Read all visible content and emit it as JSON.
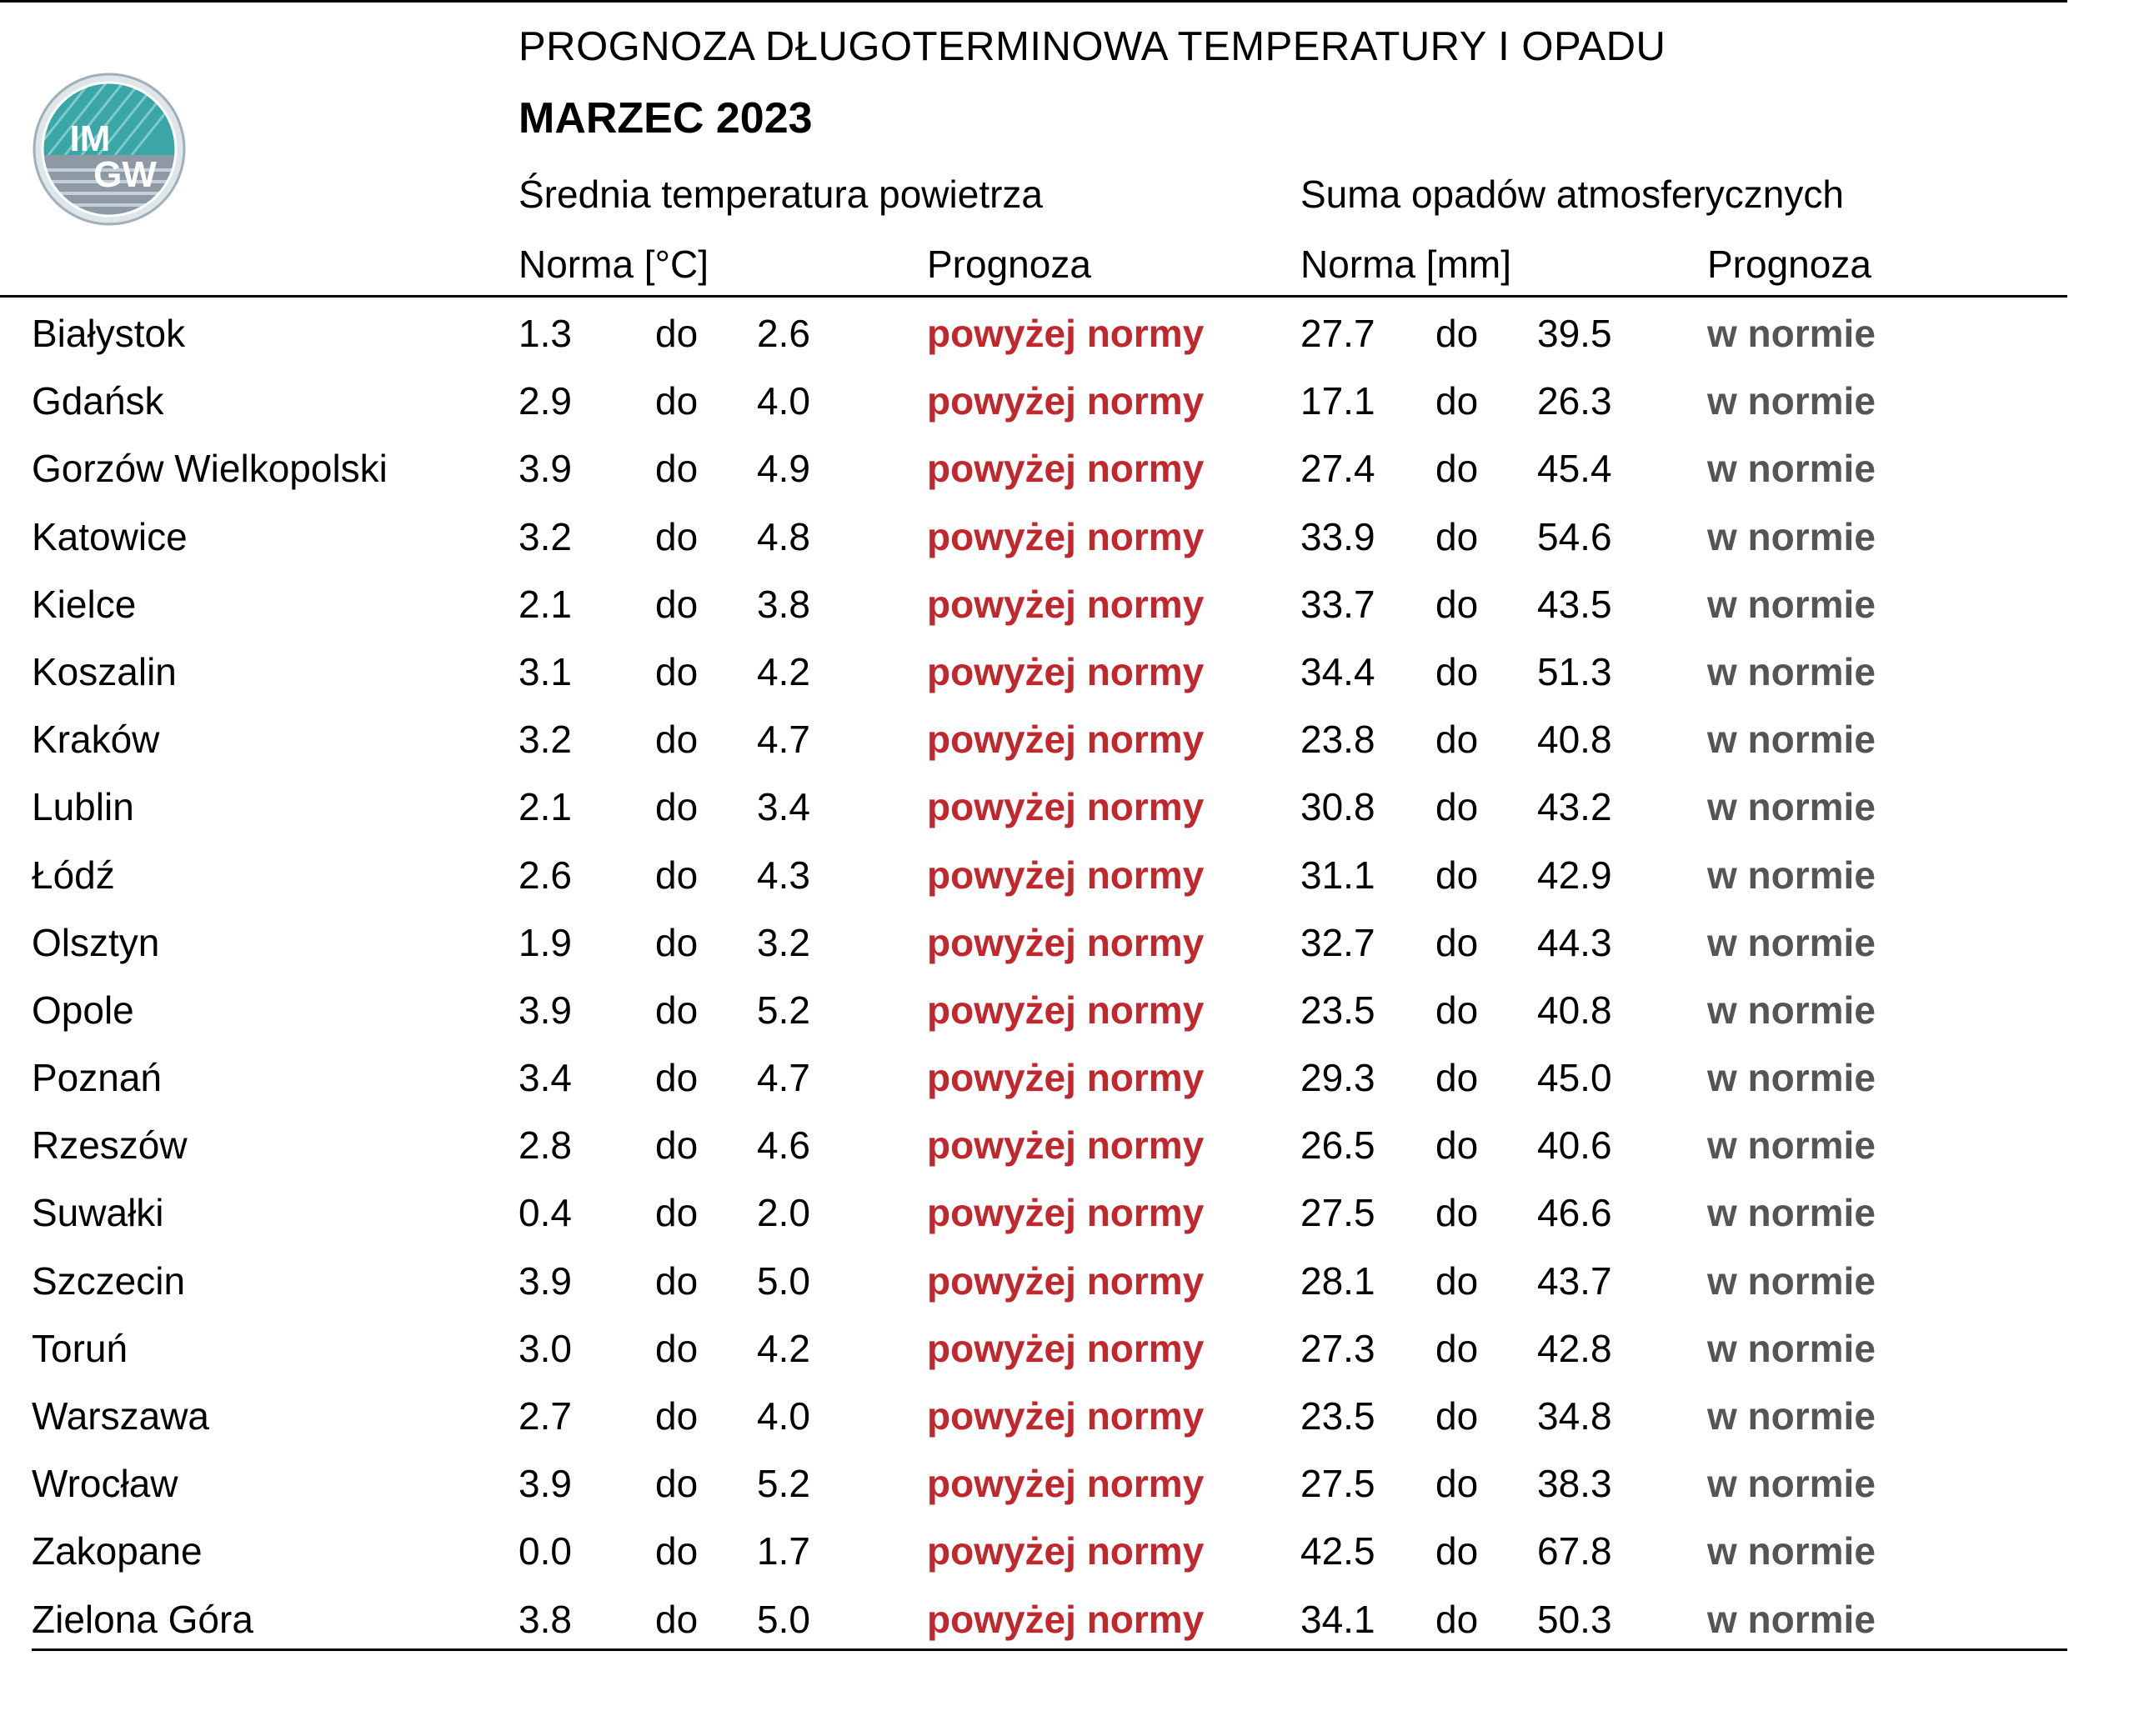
{
  "header": {
    "title": "PROGNOZA DŁUGOTERMINOWA TEMPERATURY I OPADU",
    "subtitle": "MARZEC 2023",
    "temp_group": "Średnia temperatura powietrza",
    "precip_group": "Suma opadów atmosferycznych",
    "temp_norm": "Norma [°C]",
    "temp_forecast": "Prognoza",
    "precip_norm": "Norma [mm]",
    "precip_forecast": "Prognoza"
  },
  "logo": {
    "text_line1": "IM",
    "text_line2": "GW",
    "colors": {
      "teal": "#3aa6a6",
      "gray": "#8d9aa6",
      "ring": "#c8d2d6"
    }
  },
  "colors": {
    "forecast_temp": "#c0282d",
    "forecast_precip": "#555555"
  },
  "rows": [
    {
      "city": "Białystok",
      "tmin": "1.3",
      "tdo": "do",
      "tmax": "2.6",
      "tfc": "powyżej normy",
      "pmin": "27.7",
      "pdo": "do",
      "pmax": "39.5",
      "pfc": "w normie"
    },
    {
      "city": "Gdańsk",
      "tmin": "2.9",
      "tdo": "do",
      "tmax": "4.0",
      "tfc": "powyżej normy",
      "pmin": "17.1",
      "pdo": "do",
      "pmax": "26.3",
      "pfc": "w normie"
    },
    {
      "city": "Gorzów Wielkopolski",
      "tmin": "3.9",
      "tdo": "do",
      "tmax": "4.9",
      "tfc": "powyżej normy",
      "pmin": "27.4",
      "pdo": "do",
      "pmax": "45.4",
      "pfc": "w normie"
    },
    {
      "city": "Katowice",
      "tmin": "3.2",
      "tdo": "do",
      "tmax": "4.8",
      "tfc": "powyżej normy",
      "pmin": "33.9",
      "pdo": "do",
      "pmax": "54.6",
      "pfc": "w normie"
    },
    {
      "city": "Kielce",
      "tmin": "2.1",
      "tdo": "do",
      "tmax": "3.8",
      "tfc": "powyżej normy",
      "pmin": "33.7",
      "pdo": "do",
      "pmax": "43.5",
      "pfc": "w normie"
    },
    {
      "city": "Koszalin",
      "tmin": "3.1",
      "tdo": "do",
      "tmax": "4.2",
      "tfc": "powyżej normy",
      "pmin": "34.4",
      "pdo": "do",
      "pmax": "51.3",
      "pfc": "w normie"
    },
    {
      "city": "Kraków",
      "tmin": "3.2",
      "tdo": "do",
      "tmax": "4.7",
      "tfc": "powyżej normy",
      "pmin": "23.8",
      "pdo": "do",
      "pmax": "40.8",
      "pfc": "w normie"
    },
    {
      "city": "Lublin",
      "tmin": "2.1",
      "tdo": "do",
      "tmax": "3.4",
      "tfc": "powyżej normy",
      "pmin": "30.8",
      "pdo": "do",
      "pmax": "43.2",
      "pfc": "w normie"
    },
    {
      "city": "Łódź",
      "tmin": "2.6",
      "tdo": "do",
      "tmax": "4.3",
      "tfc": "powyżej normy",
      "pmin": "31.1",
      "pdo": "do",
      "pmax": "42.9",
      "pfc": "w normie"
    },
    {
      "city": "Olsztyn",
      "tmin": "1.9",
      "tdo": "do",
      "tmax": "3.2",
      "tfc": "powyżej normy",
      "pmin": "32.7",
      "pdo": "do",
      "pmax": "44.3",
      "pfc": "w normie"
    },
    {
      "city": "Opole",
      "tmin": "3.9",
      "tdo": "do",
      "tmax": "5.2",
      "tfc": "powyżej normy",
      "pmin": "23.5",
      "pdo": "do",
      "pmax": "40.8",
      "pfc": "w normie"
    },
    {
      "city": "Poznań",
      "tmin": "3.4",
      "tdo": "do",
      "tmax": "4.7",
      "tfc": "powyżej normy",
      "pmin": "29.3",
      "pdo": "do",
      "pmax": "45.0",
      "pfc": "w normie"
    },
    {
      "city": "Rzeszów",
      "tmin": "2.8",
      "tdo": "do",
      "tmax": "4.6",
      "tfc": "powyżej normy",
      "pmin": "26.5",
      "pdo": "do",
      "pmax": "40.6",
      "pfc": "w normie"
    },
    {
      "city": "Suwałki",
      "tmin": "0.4",
      "tdo": "do",
      "tmax": "2.0",
      "tfc": "powyżej normy",
      "pmin": "27.5",
      "pdo": "do",
      "pmax": "46.6",
      "pfc": "w normie"
    },
    {
      "city": "Szczecin",
      "tmin": "3.9",
      "tdo": "do",
      "tmax": "5.0",
      "tfc": "powyżej normy",
      "pmin": "28.1",
      "pdo": "do",
      "pmax": "43.7",
      "pfc": "w normie"
    },
    {
      "city": "Toruń",
      "tmin": "3.0",
      "tdo": "do",
      "tmax": "4.2",
      "tfc": "powyżej normy",
      "pmin": "27.3",
      "pdo": "do",
      "pmax": "42.8",
      "pfc": "w normie"
    },
    {
      "city": "Warszawa",
      "tmin": "2.7",
      "tdo": "do",
      "tmax": "4.0",
      "tfc": "powyżej normy",
      "pmin": "23.5",
      "pdo": "do",
      "pmax": "34.8",
      "pfc": "w normie"
    },
    {
      "city": "Wrocław",
      "tmin": "3.9",
      "tdo": "do",
      "tmax": "5.2",
      "tfc": "powyżej normy",
      "pmin": "27.5",
      "pdo": "do",
      "pmax": "38.3",
      "pfc": "w normie"
    },
    {
      "city": "Zakopane",
      "tmin": "0.0",
      "tdo": "do",
      "tmax": "1.7",
      "tfc": "powyżej normy",
      "pmin": "42.5",
      "pdo": "do",
      "pmax": "67.8",
      "pfc": "w normie"
    },
    {
      "city": "Zielona Góra",
      "tmin": "3.8",
      "tdo": "do",
      "tmax": "5.0",
      "tfc": "powyżej normy",
      "pmin": "34.1",
      "pdo": "do",
      "pmax": "50.3",
      "pfc": "w normie"
    }
  ]
}
